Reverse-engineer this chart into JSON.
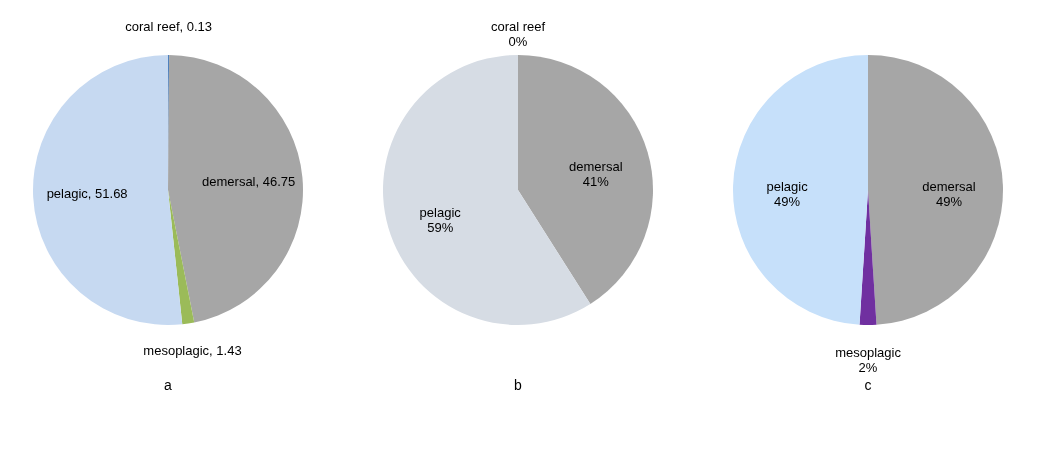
{
  "chart_data": [
    {
      "type": "pie",
      "categories": [
        "coral reef",
        "demersal",
        "mesoplagic",
        "pelagic"
      ],
      "values": [
        0.13,
        46.75,
        1.43,
        51.68
      ],
      "colors": [
        "#4f81bd",
        "#a6a6a6",
        "#9bbb59",
        "#c6d9f1"
      ],
      "value_labels": [
        "0.13",
        "46.75",
        "1.43",
        "51.68"
      ],
      "annotations": [
        "a"
      ]
    },
    {
      "type": "pie",
      "categories": [
        "coral reef",
        "demersal",
        "pelagic"
      ],
      "values": [
        0,
        41,
        59
      ],
      "colors": [
        "#4f81bd",
        "#a6a6a6",
        "#d6dce4"
      ],
      "value_labels": [
        "0%",
        "41%",
        "59%"
      ],
      "annotations": [
        "b"
      ]
    },
    {
      "type": "pie",
      "categories": [
        "demersal",
        "mesoplagic",
        "pelagic"
      ],
      "values": [
        49,
        2,
        49
      ],
      "colors": [
        "#a6a6a6",
        "#7030a0",
        "#c6e0fa"
      ],
      "value_labels": [
        "49%",
        "2%",
        "49%"
      ],
      "annotations": [
        "c"
      ]
    }
  ]
}
